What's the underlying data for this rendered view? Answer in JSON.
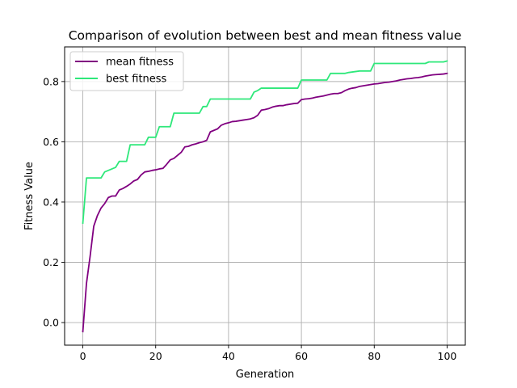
{
  "chart_data": {
    "type": "line",
    "title": "Comparison of evolution between best and mean fitness value",
    "xlabel": "Generation",
    "ylabel": "Fitness Value",
    "xlim": [
      -5,
      105
    ],
    "ylim": [
      -0.075,
      0.915
    ],
    "xticks": [
      0,
      20,
      40,
      60,
      80,
      100
    ],
    "yticks": [
      0.0,
      0.2,
      0.4,
      0.6,
      0.8
    ],
    "xtick_labels": [
      "0",
      "20",
      "40",
      "60",
      "80",
      "100"
    ],
    "ytick_labels": [
      "0.0",
      "0.2",
      "0.4",
      "0.6",
      "0.8"
    ],
    "grid": true,
    "legend_position": "upper left",
    "series": [
      {
        "name": "mean fitness",
        "color": "#800080",
        "x": [
          0,
          1,
          2,
          3,
          4,
          5,
          6,
          7,
          8,
          9,
          10,
          11,
          12,
          13,
          14,
          15,
          16,
          17,
          18,
          19,
          20,
          21,
          22,
          23,
          24,
          25,
          26,
          27,
          28,
          29,
          30,
          31,
          32,
          33,
          34,
          35,
          36,
          37,
          38,
          39,
          40,
          41,
          42,
          43,
          44,
          45,
          46,
          47,
          48,
          49,
          50,
          51,
          52,
          53,
          54,
          55,
          56,
          57,
          58,
          59,
          60,
          61,
          62,
          63,
          64,
          65,
          66,
          67,
          68,
          69,
          70,
          71,
          72,
          73,
          74,
          75,
          76,
          77,
          78,
          79,
          80,
          81,
          82,
          83,
          84,
          85,
          86,
          87,
          88,
          89,
          90,
          91,
          92,
          93,
          94,
          95,
          96,
          97,
          98,
          99,
          100
        ],
        "y": [
          -0.03,
          0.13,
          0.22,
          0.32,
          0.355,
          0.38,
          0.395,
          0.415,
          0.42,
          0.42,
          0.44,
          0.445,
          0.452,
          0.46,
          0.47,
          0.475,
          0.49,
          0.5,
          0.502,
          0.505,
          0.507,
          0.51,
          0.512,
          0.525,
          0.54,
          0.545,
          0.555,
          0.565,
          0.583,
          0.585,
          0.59,
          0.593,
          0.597,
          0.6,
          0.605,
          0.633,
          0.638,
          0.643,
          0.655,
          0.66,
          0.663,
          0.667,
          0.668,
          0.67,
          0.672,
          0.674,
          0.676,
          0.68,
          0.688,
          0.705,
          0.707,
          0.71,
          0.715,
          0.718,
          0.72,
          0.72,
          0.723,
          0.725,
          0.727,
          0.728,
          0.74,
          0.742,
          0.743,
          0.745,
          0.748,
          0.75,
          0.752,
          0.755,
          0.758,
          0.76,
          0.76,
          0.763,
          0.77,
          0.775,
          0.778,
          0.78,
          0.784,
          0.786,
          0.788,
          0.79,
          0.792,
          0.793,
          0.795,
          0.797,
          0.798,
          0.8,
          0.802,
          0.805,
          0.807,
          0.809,
          0.81,
          0.812,
          0.813,
          0.815,
          0.818,
          0.82,
          0.822,
          0.823,
          0.824,
          0.825,
          0.827
        ]
      },
      {
        "name": "best fitness",
        "color": "#2ee87a",
        "x": [
          0,
          1,
          1,
          5,
          5,
          6,
          6,
          9,
          9,
          10,
          10,
          12,
          12,
          13,
          13,
          17,
          17,
          18,
          18,
          20,
          20,
          21,
          21,
          24,
          24,
          25,
          25,
          32,
          32,
          33,
          33,
          34,
          34,
          35,
          35,
          46,
          46,
          47,
          47,
          48,
          48,
          49,
          49,
          59,
          59,
          60,
          60,
          67,
          67,
          68,
          68,
          72,
          72,
          73,
          73,
          76,
          76,
          79,
          79,
          80,
          80,
          94,
          94,
          95,
          95,
          99,
          99,
          100
        ],
        "y": [
          0.33,
          0.48,
          0.48,
          0.48,
          0.48,
          0.5,
          0.5,
          0.515,
          0.515,
          0.535,
          0.535,
          0.535,
          0.535,
          0.59,
          0.59,
          0.59,
          0.59,
          0.615,
          0.615,
          0.615,
          0.615,
          0.65,
          0.65,
          0.65,
          0.65,
          0.695,
          0.695,
          0.695,
          0.695,
          0.717,
          0.717,
          0.717,
          0.717,
          0.742,
          0.742,
          0.742,
          0.742,
          0.765,
          0.765,
          0.77,
          0.77,
          0.778,
          0.778,
          0.778,
          0.778,
          0.805,
          0.805,
          0.805,
          0.805,
          0.827,
          0.827,
          0.827,
          0.827,
          0.83,
          0.83,
          0.835,
          0.835,
          0.835,
          0.835,
          0.86,
          0.86,
          0.86,
          0.86,
          0.865,
          0.865,
          0.865,
          0.865,
          0.868
        ]
      }
    ]
  }
}
